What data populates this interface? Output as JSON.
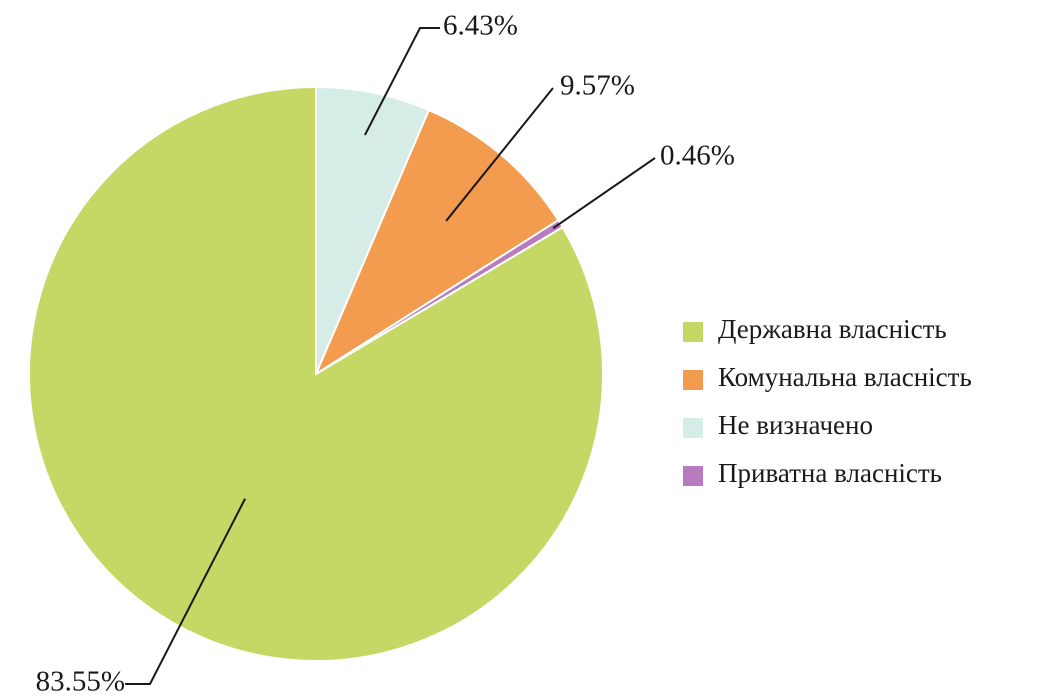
{
  "chart_data": {
    "type": "pie",
    "categories": [
      "Державна власність",
      "Комунальна власність",
      "Не визначено",
      "Приватна власність"
    ],
    "values": [
      83.55,
      9.57,
      6.43,
      0.46
    ],
    "value_labels": [
      "83.55%",
      "9.57%",
      "6.43%",
      "0.46%"
    ],
    "colors": [
      "#c5d865",
      "#f39c4f",
      "#d6ece6",
      "#b97bbf"
    ],
    "legend": "right"
  }
}
